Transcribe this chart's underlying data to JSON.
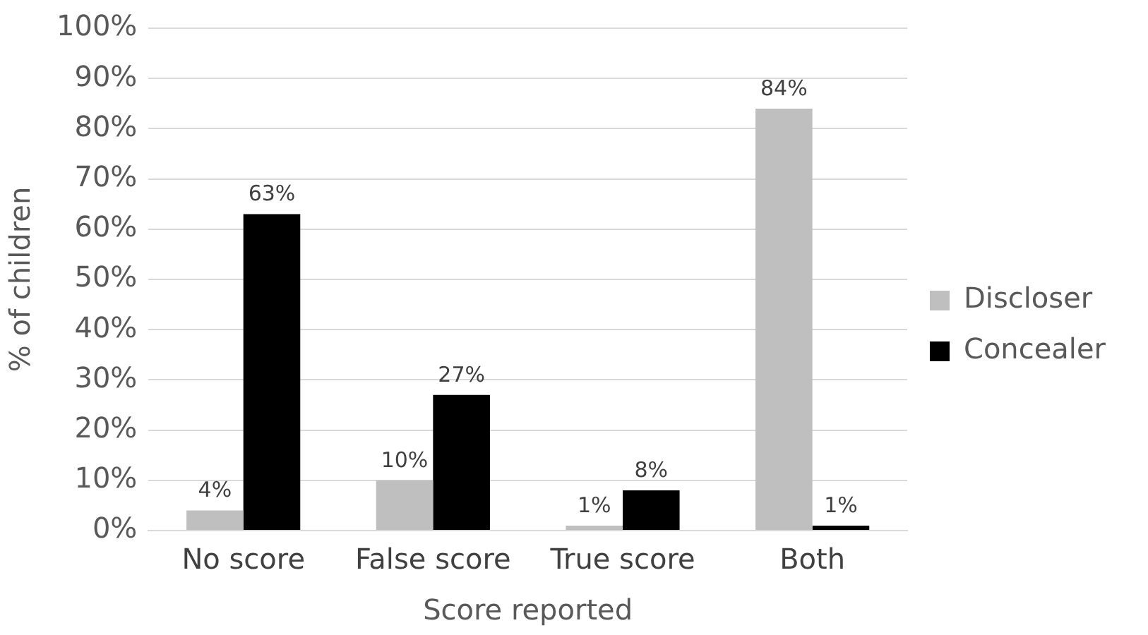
{
  "chart_data": {
    "type": "bar",
    "xlabel": "Score reported",
    "ylabel": "% of children",
    "categories": [
      "No score",
      "False score",
      "True score",
      "Both"
    ],
    "series": [
      {
        "name": "Discloser",
        "color": "#bfbfbf",
        "values": [
          4,
          10,
          1,
          84
        ],
        "value_labels": [
          "4%",
          "10%",
          "1%",
          "84%"
        ]
      },
      {
        "name": "Concealer",
        "color": "#000000",
        "values": [
          63,
          27,
          8,
          1
        ],
        "value_labels": [
          "63%",
          "27%",
          "8%",
          "1%"
        ]
      }
    ],
    "ylim": [
      0,
      100
    ],
    "yticks": [
      {
        "value": 0,
        "label": "0%"
      },
      {
        "value": 10,
        "label": "10%"
      },
      {
        "value": 20,
        "label": "20%"
      },
      {
        "value": 30,
        "label": "30%"
      },
      {
        "value": 40,
        "label": "40%"
      },
      {
        "value": 50,
        "label": "50%"
      },
      {
        "value": 60,
        "label": "60%"
      },
      {
        "value": 70,
        "label": "70%"
      },
      {
        "value": 80,
        "label": "80%"
      },
      {
        "value": 90,
        "label": "90%"
      },
      {
        "value": 100,
        "label": "100%"
      }
    ],
    "grid": "y",
    "legend": "right"
  }
}
